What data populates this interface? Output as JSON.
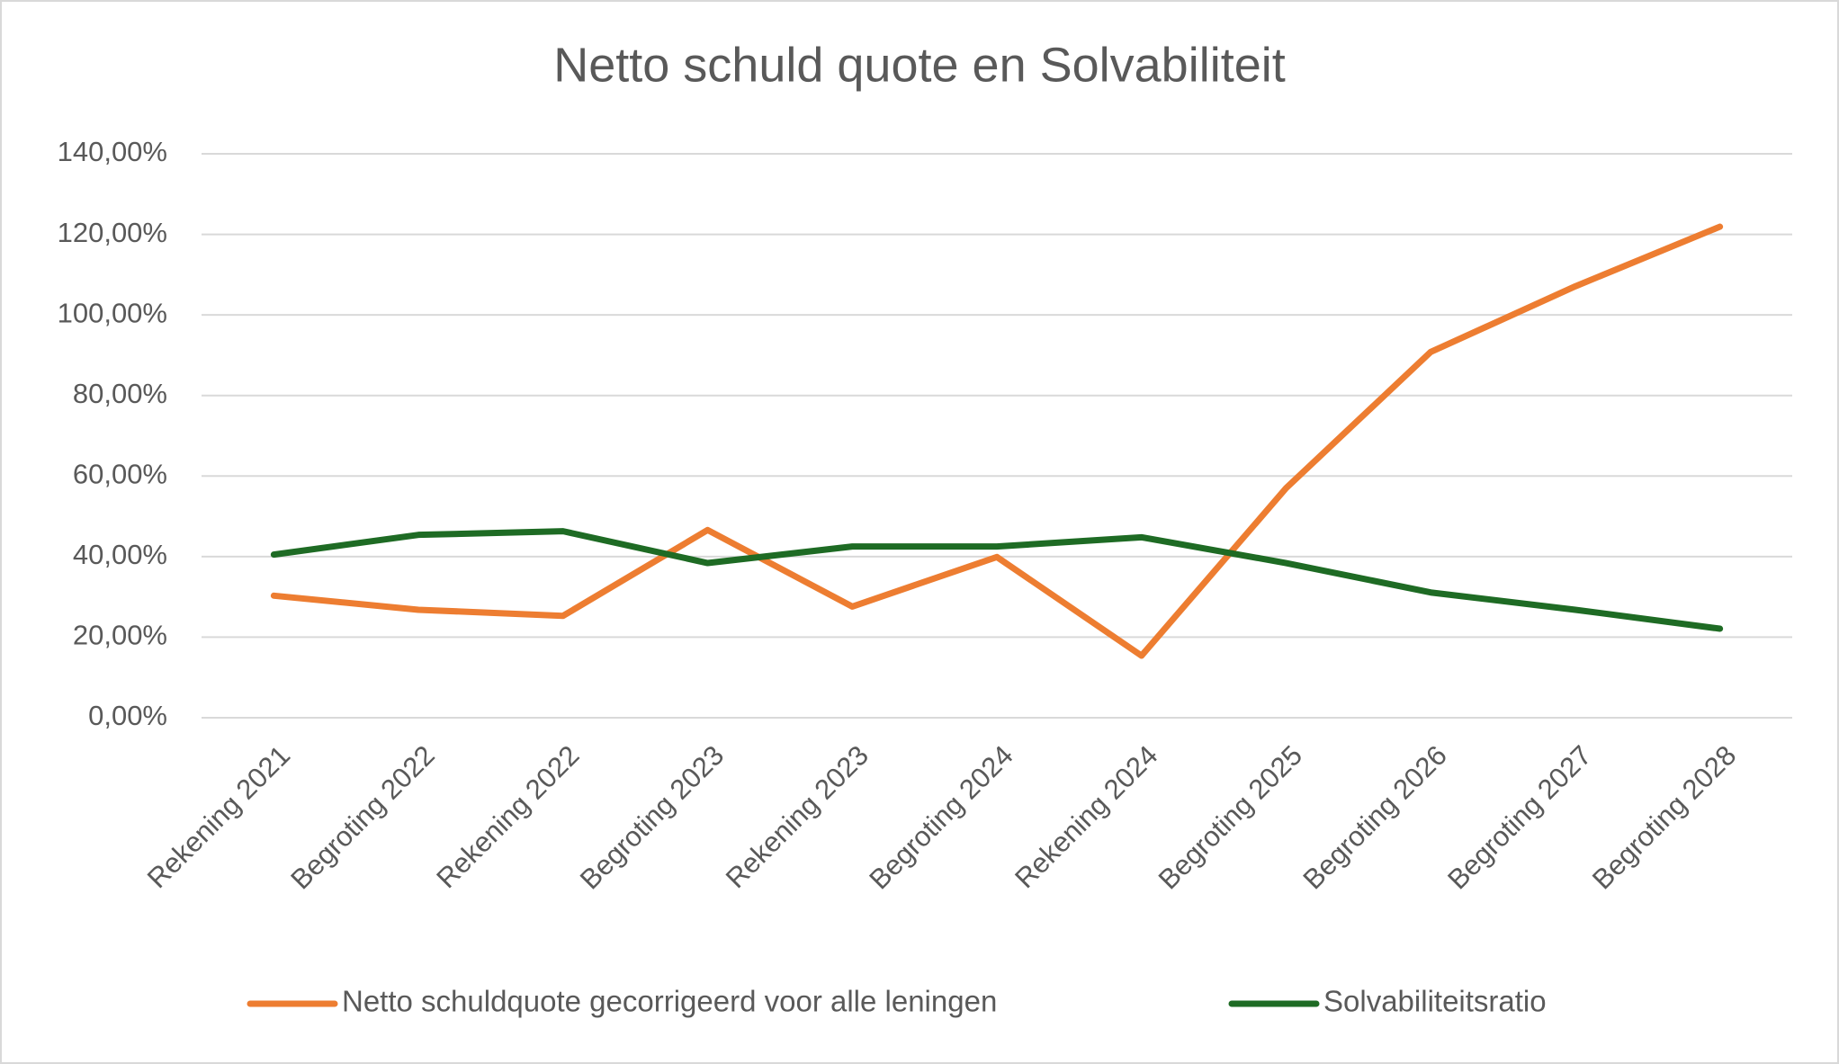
{
  "chart_data": {
    "type": "line",
    "title": "Netto schuld quote en Solvabiliteit",
    "categories": [
      "Rekening 2021",
      "Begroting 2022",
      "Rekening 2022",
      "Begroting 2023",
      "Rekening 2023",
      "Begroting 2024",
      "Rekening 2024",
      "Begroting 2025",
      "Begroting 2026",
      "Begroting 2027",
      "Begroting 2028"
    ],
    "series": [
      {
        "name": "Netto schuldquote gecorrigeerd voor alle leningen",
        "color": "#ed7d31",
        "values": [
          30.3,
          26.8,
          25.3,
          46.6,
          27.6,
          39.9,
          15.4,
          57.0,
          90.8,
          107.1,
          121.9
        ]
      },
      {
        "name": "Solvabiliteitsratio",
        "color": "#1e6b24",
        "values": [
          40.5,
          45.4,
          46.3,
          38.4,
          42.5,
          42.5,
          44.8,
          38.4,
          31.1,
          26.8,
          22.1
        ]
      }
    ],
    "ylim": [
      0,
      140
    ],
    "yticks": [
      {
        "value": 0,
        "label": "0,00%"
      },
      {
        "value": 20,
        "label": "20,00%"
      },
      {
        "value": 40,
        "label": "40,00%"
      },
      {
        "value": 60,
        "label": "60,00%"
      },
      {
        "value": 80,
        "label": "80,00%"
      },
      {
        "value": 100,
        "label": "100,00%"
      },
      {
        "value": 120,
        "label": "120,00%"
      },
      {
        "value": 140,
        "label": "140,00%"
      }
    ],
    "grid": true,
    "legend": "bottom"
  }
}
